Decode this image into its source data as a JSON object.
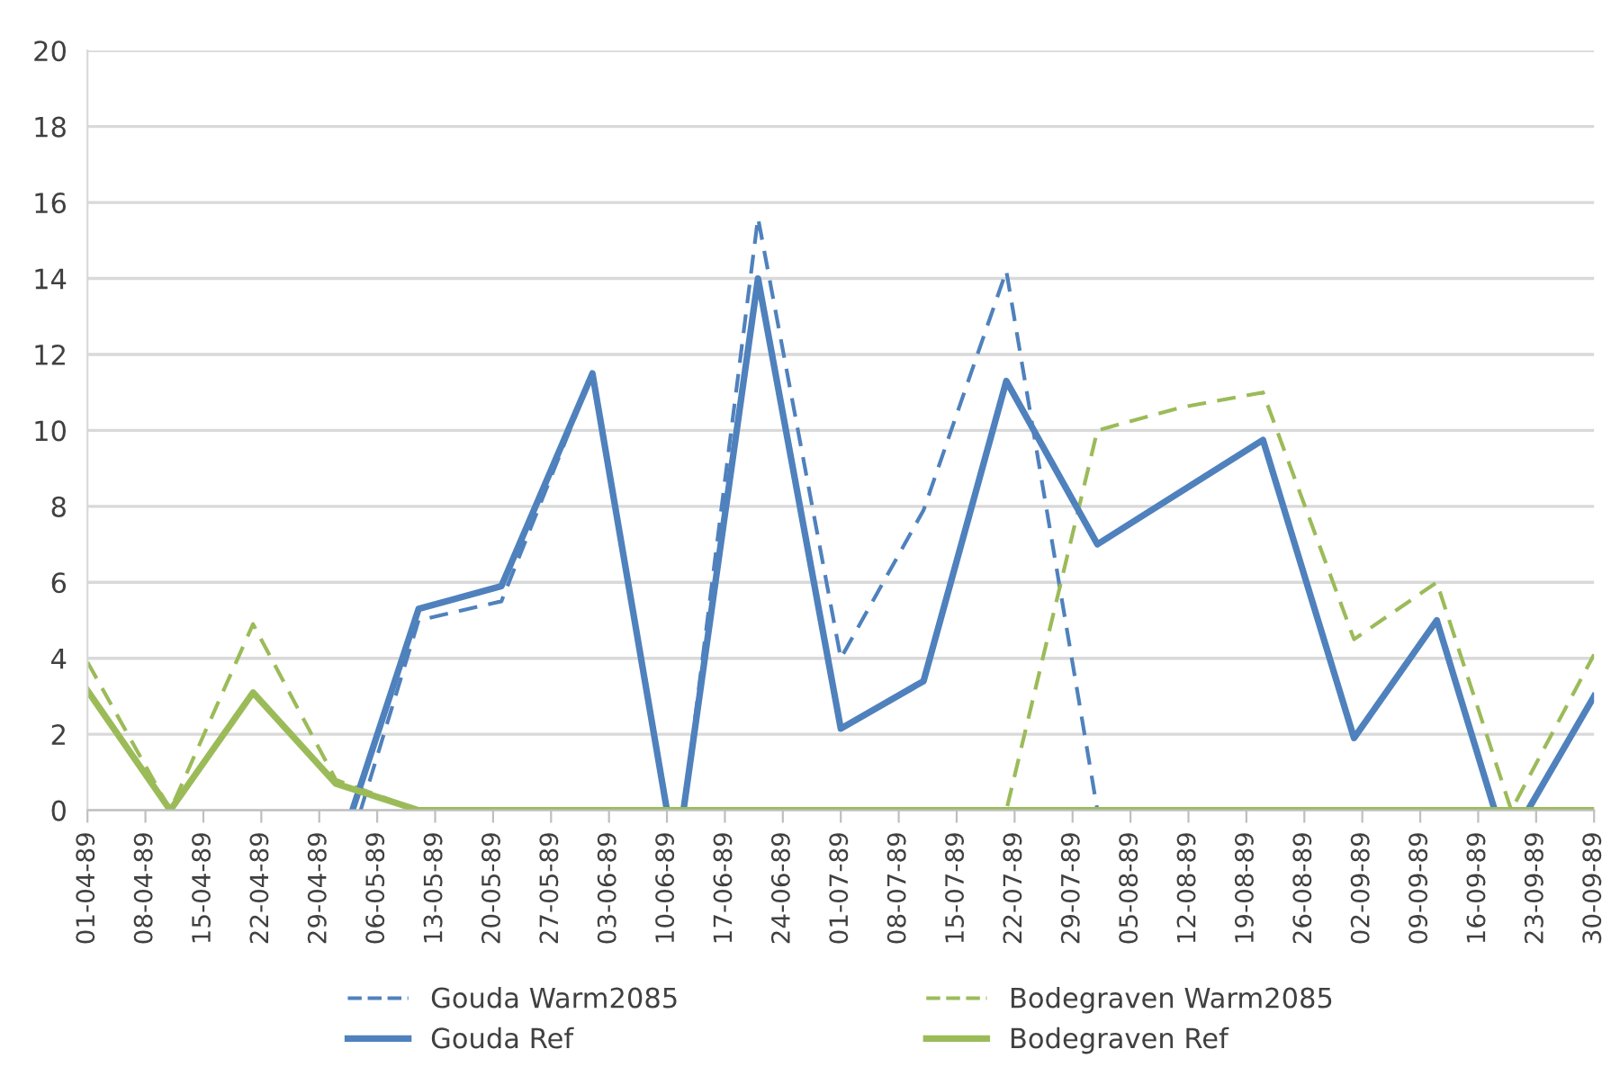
{
  "chart_data": {
    "type": "line",
    "xlim": [
      "1989-04-01",
      "1989-09-30"
    ],
    "xticks": [
      {
        "value": "1989-04-01",
        "label": "01-04-89"
      },
      {
        "value": "1989-04-08",
        "label": "08-04-89"
      },
      {
        "value": "1989-04-15",
        "label": "15-04-89"
      },
      {
        "value": "1989-04-22",
        "label": "22-04-89"
      },
      {
        "value": "1989-04-29",
        "label": "29-04-89"
      },
      {
        "value": "1989-05-06",
        "label": "06-05-89"
      },
      {
        "value": "1989-05-13",
        "label": "13-05-89"
      },
      {
        "value": "1989-05-20",
        "label": "20-05-89"
      },
      {
        "value": "1989-05-27",
        "label": "27-05-89"
      },
      {
        "value": "1989-06-03",
        "label": "03-06-89"
      },
      {
        "value": "1989-06-10",
        "label": "10-06-89"
      },
      {
        "value": "1989-06-17",
        "label": "17-06-89"
      },
      {
        "value": "1989-06-24",
        "label": "24-06-89"
      },
      {
        "value": "1989-07-01",
        "label": "01-07-89"
      },
      {
        "value": "1989-07-08",
        "label": "08-07-89"
      },
      {
        "value": "1989-07-15",
        "label": "15-07-89"
      },
      {
        "value": "1989-07-22",
        "label": "22-07-89"
      },
      {
        "value": "1989-07-29",
        "label": "29-07-89"
      },
      {
        "value": "1989-08-05",
        "label": "05-08-89"
      },
      {
        "value": "1989-08-12",
        "label": "12-08-89"
      },
      {
        "value": "1989-08-19",
        "label": "19-08-89"
      },
      {
        "value": "1989-08-26",
        "label": "26-08-89"
      },
      {
        "value": "1989-09-02",
        "label": "02-09-89"
      },
      {
        "value": "1989-09-09",
        "label": "09-09-89"
      },
      {
        "value": "1989-09-16",
        "label": "16-09-89"
      },
      {
        "value": "1989-09-23",
        "label": "23-09-89"
      },
      {
        "value": "1989-09-30",
        "label": "30-09-89"
      }
    ],
    "ylim": [
      0,
      20
    ],
    "yticks": [
      0,
      2,
      4,
      6,
      8,
      10,
      12,
      14,
      16,
      18,
      20
    ],
    "grid": "y",
    "legend": "bottom",
    "series": [
      {
        "name": "Gouda Warm2085",
        "color": "#4f81bd",
        "line_style": "dashed",
        "x": [
          "1989-05-04",
          "1989-05-11",
          "1989-05-21",
          "1989-06-01",
          "1989-06-10",
          "1989-06-12",
          "1989-06-21",
          "1989-07-01",
          "1989-07-11",
          "1989-07-21",
          "1989-08-01"
        ],
        "values": [
          0,
          5.0,
          5.5,
          11.5,
          0,
          0,
          15.6,
          4.0,
          7.9,
          14.2,
          0
        ]
      },
      {
        "name": "Bodegraven Warm2085",
        "color": "#9bbb59",
        "line_style": "dashed",
        "x": [
          "1989-04-01",
          "1989-04-11",
          "1989-04-21",
          "1989-05-01",
          "1989-05-11",
          "1989-07-21",
          "1989-08-01",
          "1989-08-11",
          "1989-08-21",
          "1989-09-01",
          "1989-09-11",
          "1989-09-20",
          "1989-09-30"
        ],
        "values": [
          3.9,
          0,
          4.9,
          0.8,
          0,
          0,
          10.0,
          10.6,
          11.0,
          4.5,
          6.0,
          0,
          4.1
        ]
      },
      {
        "name": "Gouda Ref",
        "color": "#4f81bd",
        "line_style": "solid",
        "x": [
          "1989-05-03",
          "1989-05-11",
          "1989-05-21",
          "1989-06-01",
          "1989-06-10",
          "1989-06-12",
          "1989-06-21",
          "1989-07-01",
          "1989-07-11",
          "1989-07-21",
          "1989-08-01",
          "1989-08-21",
          "1989-09-01",
          "1989-09-11",
          "1989-09-18",
          "1989-09-22",
          "1989-09-30"
        ],
        "values": [
          0,
          5.3,
          5.9,
          11.5,
          0,
          0,
          14.0,
          2.15,
          3.4,
          11.3,
          7.0,
          9.75,
          1.9,
          5.0,
          0,
          0,
          3.0
        ]
      },
      {
        "name": "Bodegraven Ref",
        "color": "#9bbb59",
        "line_style": "solid",
        "x": [
          "1989-04-01",
          "1989-04-11",
          "1989-04-21",
          "1989-05-01",
          "1989-05-11",
          "1989-09-30"
        ],
        "values": [
          3.15,
          0,
          3.1,
          0.7,
          0,
          0
        ]
      }
    ]
  }
}
